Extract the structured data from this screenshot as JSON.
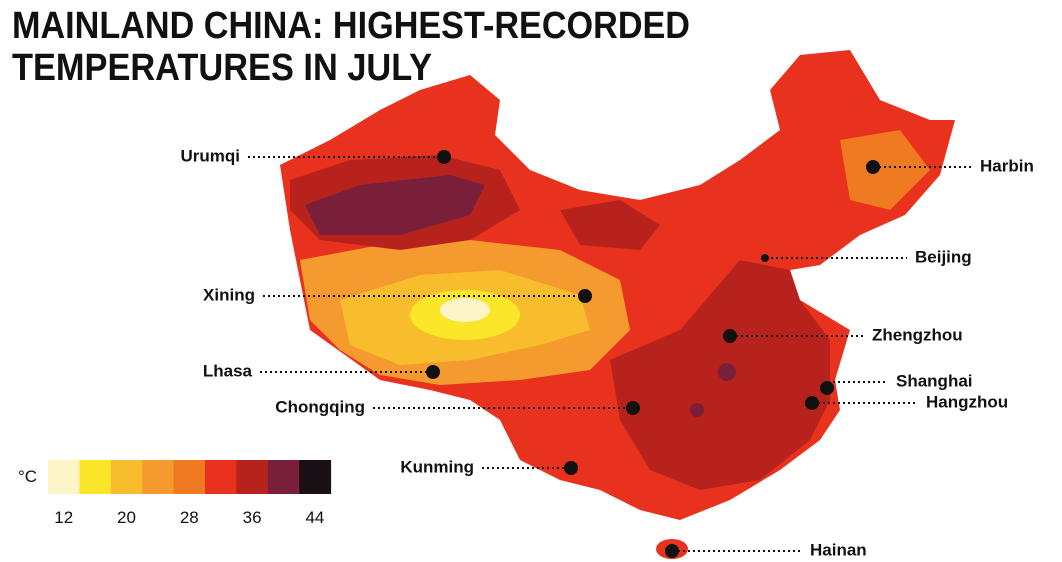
{
  "title": [
    "MAINLAND CHINA: HIGHEST-RECORDED",
    "TEMPERATURES IN JULY"
  ],
  "cities": [
    {
      "label": "Urumqi"
    },
    {
      "label": "Harbin"
    },
    {
      "label": "Beijing"
    },
    {
      "label": "Xining"
    },
    {
      "label": "Zhengzhou"
    },
    {
      "label": "Lhasa"
    },
    {
      "label": "Shanghai"
    },
    {
      "label": "Hangzhou"
    },
    {
      "label": "Chongqing"
    },
    {
      "label": "Kunming"
    },
    {
      "label": "Hainan"
    }
  ],
  "legend": {
    "unit": "°C",
    "colors": [
      "#fdf5c8",
      "#fce62a",
      "#f7bd2c",
      "#f59a2e",
      "#f07a22",
      "#e8321e",
      "#b8221c",
      "#7a1f3a",
      "#1a0f14"
    ],
    "ticks": [
      12,
      20,
      28,
      36,
      44
    ]
  }
}
